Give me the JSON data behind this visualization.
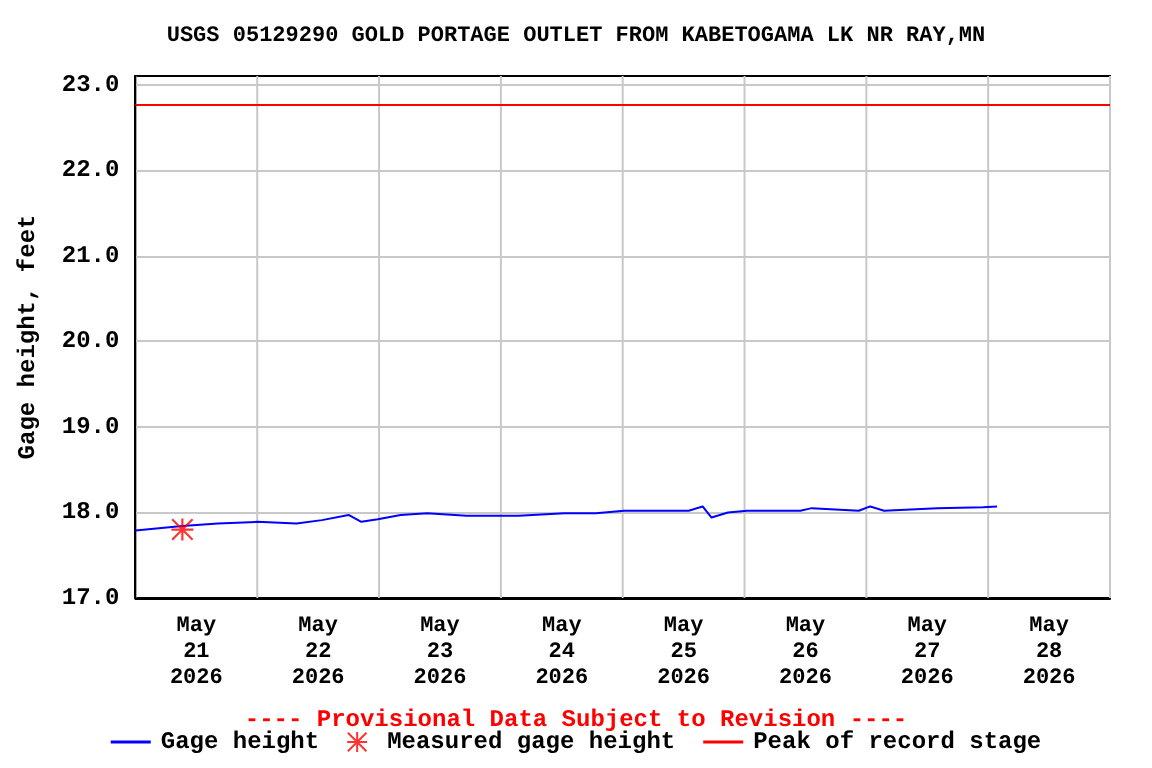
{
  "chart_data": {
    "type": "line",
    "title": "USGS 05129290 GOLD PORTAGE OUTLET FROM KABETOGAMA LK NR RAY,MN",
    "ylabel": "Gage height, feet",
    "annotations": [
      "---- Provisional Data Subject to Revision ----"
    ],
    "series": [
      {
        "name": "Gage height",
        "color": "#0000ff",
        "marker": "none",
        "x": [
          "2026-05-21T00:00",
          "2026-05-21T09:15",
          "2026-05-21T16:15",
          "2026-05-22T00:00",
          "2026-05-22T07:45",
          "2026-05-22T12:45",
          "2026-05-22T18:00",
          "2026-05-22T20:30",
          "2026-05-22T23:45",
          "2026-05-23T04:15",
          "2026-05-23T09:30",
          "2026-05-23T17:15",
          "2026-05-24T03:30",
          "2026-05-24T12:30",
          "2026-05-24T18:45",
          "2026-05-25T00:15",
          "2026-05-25T13:00",
          "2026-05-25T15:45",
          "2026-05-25T17:30",
          "2026-05-25T20:45",
          "2026-05-26T00:30",
          "2026-05-26T11:00",
          "2026-05-26T13:15",
          "2026-05-26T22:30",
          "2026-05-27T00:45",
          "2026-05-27T03:30",
          "2026-05-27T14:00",
          "2026-05-27T23:00",
          "2026-05-28T01:45"
        ],
        "values": [
          17.79,
          17.84,
          17.87,
          17.89,
          17.87,
          17.91,
          17.97,
          17.89,
          17.92,
          17.97,
          17.99,
          17.96,
          17.96,
          17.99,
          17.99,
          18.02,
          18.02,
          18.07,
          17.94,
          18.0,
          18.02,
          18.02,
          18.05,
          18.02,
          18.07,
          18.02,
          18.05,
          18.06,
          18.07
        ]
      },
      {
        "name": "Measured gage height",
        "type": "scatter",
        "color": "#ff0000",
        "marker": "star",
        "x": [
          "2026-05-21T09:15"
        ],
        "values": [
          17.8
        ]
      }
    ],
    "ref_lines": [
      {
        "axis": "y",
        "value": 22.76,
        "label": "Peak of record stage",
        "color": "#ff0000",
        "line_style": "solid"
      }
    ],
    "xlim": [
      "2026-05-21T00:00",
      "2026-05-29T00:00"
    ],
    "xticks": [
      {
        "value": "2026-05-21T00:00",
        "label": null
      },
      {
        "value": "2026-05-21T12:00",
        "label": "May\n21\n2026"
      },
      {
        "value": "2026-05-22T00:00",
        "label": null
      },
      {
        "value": "2026-05-22T12:00",
        "label": "May\n22\n2026"
      },
      {
        "value": "2026-05-23T00:00",
        "label": null
      },
      {
        "value": "2026-05-23T12:00",
        "label": "May\n23\n2026"
      },
      {
        "value": "2026-05-24T00:00",
        "label": null
      },
      {
        "value": "2026-05-24T12:00",
        "label": "May\n24\n2026"
      },
      {
        "value": "2026-05-25T00:00",
        "label": null
      },
      {
        "value": "2026-05-25T12:00",
        "label": "May\n25\n2026"
      },
      {
        "value": "2026-05-26T00:00",
        "label": null
      },
      {
        "value": "2026-05-26T12:00",
        "label": "May\n26\n2026"
      },
      {
        "value": "2026-05-27T00:00",
        "label": null
      },
      {
        "value": "2026-05-27T12:00",
        "label": "May\n27\n2026"
      },
      {
        "value": "2026-05-28T00:00",
        "label": null
      },
      {
        "value": "2026-05-28T12:00",
        "label": "May\n28\n2026"
      },
      {
        "value": "2026-05-29T00:00",
        "label": null
      }
    ],
    "ylim": [
      17.0,
      23.1
    ],
    "yticks": [
      {
        "value": 17,
        "label": "17.0"
      },
      {
        "value": 18,
        "label": "18.0"
      },
      {
        "value": 19,
        "label": "19.0"
      },
      {
        "value": 20,
        "label": "20.0"
      },
      {
        "value": 21,
        "label": "21.0"
      },
      {
        "value": 22,
        "label": "22.0"
      },
      {
        "value": 23,
        "label": "23.0"
      }
    ],
    "grid": true,
    "legend": "bottom"
  }
}
